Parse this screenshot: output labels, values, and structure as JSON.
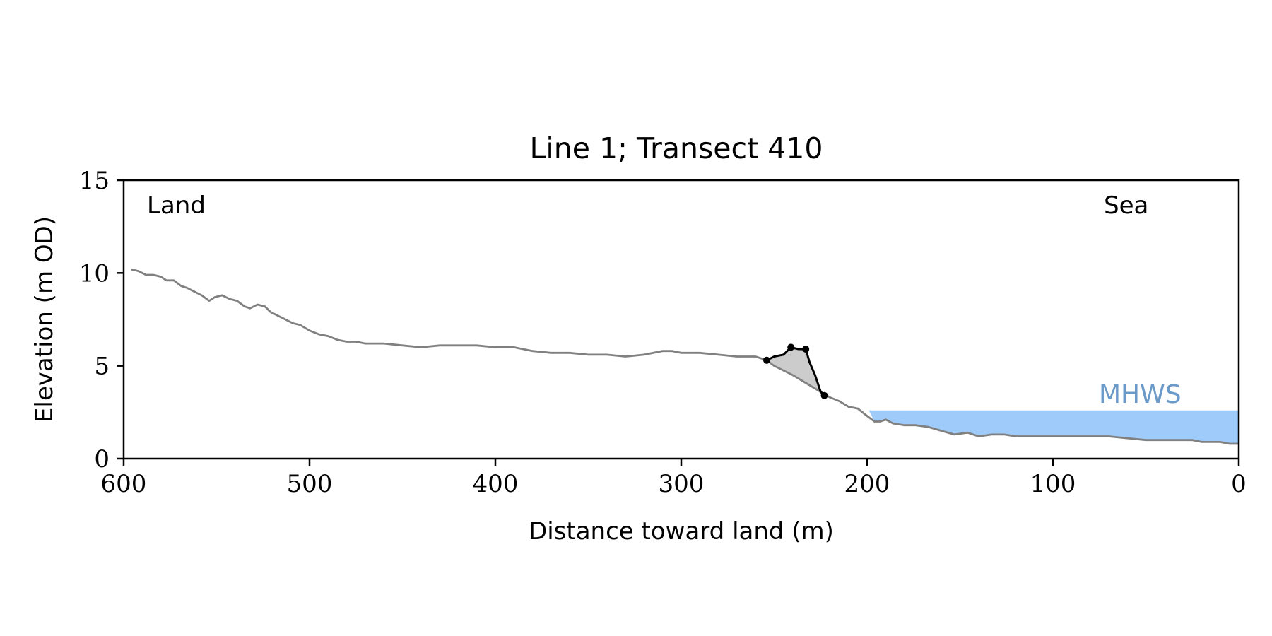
{
  "chart_data": {
    "type": "line",
    "title": "Line 1; Transect 410",
    "xlabel": "Distance toward land (m)",
    "ylabel": "Elevation (m OD)",
    "xlim": [
      600,
      0
    ],
    "ylim": [
      0,
      15
    ],
    "x_ticks": [
      600,
      500,
      400,
      300,
      200,
      100,
      0
    ],
    "y_ticks": [
      0,
      5,
      10,
      15
    ],
    "annotations": {
      "left": "Land",
      "right": "Sea",
      "mhws": "MHWS"
    },
    "mhws": {
      "elevation": 2.6,
      "x_from": 199,
      "x_to": 0
    },
    "colors": {
      "profile": "#808080",
      "feature": "#000000",
      "feature_fill": "#cccccc",
      "mhws_fill": "#9fcbfa",
      "mhws_text": "#6b9ac9"
    },
    "series": [
      {
        "role": "profile",
        "x": [
          596,
          592,
          588,
          584,
          580,
          577,
          573,
          569,
          566,
          562,
          558,
          554,
          551,
          547,
          543,
          539,
          535,
          532,
          528,
          524,
          521,
          517,
          513,
          509,
          505,
          500,
          495,
          490,
          485,
          480,
          475,
          470,
          460,
          450,
          440,
          430,
          420,
          410,
          400,
          390,
          380,
          370,
          360,
          350,
          340,
          330,
          320,
          310,
          305,
          300,
          290,
          280,
          270,
          260,
          254,
          250,
          240,
          230,
          220,
          215,
          210,
          205,
          200,
          196,
          193,
          190,
          186,
          180,
          174,
          167,
          160,
          153,
          146,
          140,
          133,
          126,
          120,
          110,
          100,
          90,
          80,
          70,
          60,
          50,
          40,
          30,
          25,
          20,
          15,
          10,
          5,
          0
        ],
        "y": [
          10.2,
          10.1,
          9.9,
          9.9,
          9.8,
          9.6,
          9.6,
          9.3,
          9.2,
          9.0,
          8.8,
          8.5,
          8.7,
          8.8,
          8.6,
          8.5,
          8.2,
          8.1,
          8.3,
          8.2,
          7.9,
          7.7,
          7.5,
          7.3,
          7.2,
          6.9,
          6.7,
          6.6,
          6.4,
          6.3,
          6.3,
          6.2,
          6.2,
          6.1,
          6.0,
          6.1,
          6.1,
          6.1,
          6.0,
          6.0,
          5.8,
          5.7,
          5.7,
          5.6,
          5.6,
          5.5,
          5.6,
          5.8,
          5.8,
          5.7,
          5.7,
          5.6,
          5.5,
          5.5,
          5.3,
          5.0,
          4.5,
          3.9,
          3.3,
          3.1,
          2.8,
          2.7,
          2.3,
          2.0,
          2.0,
          2.1,
          1.9,
          1.8,
          1.8,
          1.7,
          1.5,
          1.3,
          1.4,
          1.2,
          1.3,
          1.3,
          1.2,
          1.2,
          1.2,
          1.2,
          1.2,
          1.2,
          1.1,
          1.0,
          1.0,
          1.0,
          1.0,
          0.9,
          0.9,
          0.9,
          0.8,
          0.8
        ]
      },
      {
        "role": "feature",
        "x": [
          254,
          250,
          245,
          241,
          237,
          233,
          231,
          228,
          225,
          223
        ],
        "y": [
          5.3,
          5.5,
          5.6,
          6.0,
          5.9,
          5.9,
          5.2,
          4.5,
          3.6,
          3.4
        ]
      }
    ],
    "feature_points": {
      "x": [
        254,
        241,
        233,
        223
      ],
      "y": [
        5.3,
        6.0,
        5.9,
        3.4
      ]
    }
  }
}
